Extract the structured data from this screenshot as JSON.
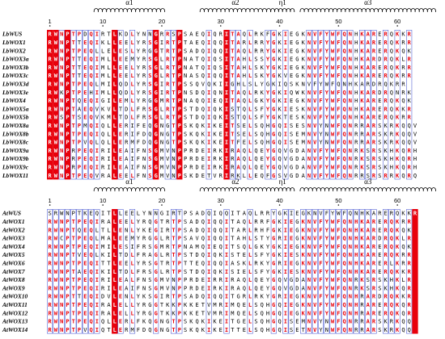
{
  "colors": {
    "identical": "#e8000b",
    "similar": "#e8000b",
    "box": "#3344cc",
    "text": "#000000"
  },
  "ruler": [
    "1",
    "10",
    "20",
    "30",
    "40",
    "50",
    "60"
  ],
  "panels": [
    {
      "secondary_structure": [
        {
          "label": "α1",
          "start": 9,
          "end": 20
        },
        {
          "label": "α2",
          "start": 27,
          "end": 38
        },
        {
          "label": "η1",
          "start": 39,
          "end": 42
        },
        {
          "label": "α3",
          "start": 44,
          "end": 66
        }
      ],
      "sequences": [
        {
          "name": "LbWUS",
          "seq": "RWNPTPDQIRTLKDLYNNGRRSPSAEQIQRITAQLRKFGKIEGKNVFYWFQNHKARERQKKR"
        },
        {
          "name": "LbWOX1",
          "seq": "RWNPTTEQIKLLEELYRSGIRTPTAEQIQQITARLRRYGKIEGKNVFYWFQNHKARERQKRR"
        },
        {
          "name": "LbWOX2",
          "seq": "RWNPTPEQLLELESLYRGGTRTPSADQIQQITAQLRRYGKIEGKNVFYWFQNHKARERQKQK"
        },
        {
          "name": "LbWOX3a",
          "seq": "RWNPTTEQIMLLEEMYRSGLRTPNATQIQSITAHLSSYGKIEGKNVFYWFQNHKARDRQKLR"
        },
        {
          "name": "LbWOX3b",
          "seq": "RWNPTTEQIMLLEELYRSGLRTPNATQIQSITAHLSKYGKIEGKNVFYWFQNHKARERQKRR"
        },
        {
          "name": "LbWOX3c",
          "seq": "RWNPTTEQIMLLEELYRSGLRTPNASQIQQITAHLSKYGKVEGKNVFYWFQNHKARERQKRR"
        },
        {
          "name": "LbWOX3d",
          "seq": "RWNPTPEQLMILQDLYRSGIRTPSSQVQKIIGHLSLYGKIQSKNVFYWFQNHKARDRQKRR"
        },
        {
          "name": "LbWOX3e",
          "seq": "RWKPTPEHIMLLQDLYRSGIRTPNSDQIQNITAQLRKYGKIQWKNVFYWFQNHKARDRQNRK"
        },
        {
          "name": "LbWOX4",
          "seq": "RWNPTQEQIGILEMLYRGGMRTPNAQQIEQITAQLGKYGKIEGKNVFYWFQNHKARERQKQK"
        },
        {
          "name": "LbWOX5a",
          "seq": "RWNPTAEQVKVLTDLFRSGLRTPSTDQIQKISTQLSFYGKIESKNVFYWFQNHKARERQKKR"
        },
        {
          "name": "LbWOX5b",
          "seq": "RWSPTSEQVKMLTDLFRSGLRTPSTDQIQKISTQLSFYGKTESKNVFYWFQNHKARERQKRR"
        },
        {
          "name": "LbWOX8a",
          "seq": "RWNPTPMQIQLLERIFEQGNGTPSKQKIKEITSELSQHGQISESNVYNWFQNRRARSKRKQQV"
        },
        {
          "name": "LbWOX8b",
          "seq": "RWNPTPEQIQLLERIFDQGNGTPSKQKIKEITSELSQHGQISEMNVYNWFQNRRARSKRKQQV"
        },
        {
          "name": "LbWOX8c",
          "seq": "RWNPTPVQLQLLERMFDQGNGTPSKQKIKEITFELSQHGQISEMNVYNWFQNRRARSKRKQQV"
        },
        {
          "name": "LbWOX9a",
          "seq": "RWNPRPEQIRILEAIFNSGMVNPPRDEIRKIRAQLQEYGQVGDANVFYWFQNRKSRSKHKQRH"
        },
        {
          "name": "LbWOX9b",
          "seq": "RWNPRPEQIRILEAIFNSGMVNPPRDEIRKIRAQLQEYGQVGDANVFYWFQNRKSRSKHKQRH"
        },
        {
          "name": "LbWOX9c",
          "seq": "RWNPRPEQIRILEAIFNSGMVNPPRDEIRKIRAQLQEYGQVGDANVFYWFQNRKSRSKHKQRH"
        },
        {
          "name": "LbWOX11",
          "seq": "RWNPTPEQVRALEELFNSGMVNPSKDETVRIRKLLEQFGSVGDANVFYWFQNRRSRSRRKQRQ"
        }
      ]
    },
    {
      "secondary_structure": [
        {
          "label": "α1",
          "start": 9,
          "end": 20
        },
        {
          "label": "α2",
          "start": 27,
          "end": 38
        },
        {
          "label": "η1",
          "start": 39,
          "end": 42
        },
        {
          "label": "α3",
          "start": 44,
          "end": 66
        }
      ],
      "sequences": [
        {
          "name": "AtWUS",
          "seq": "SRWNPTKEQITLLEELYNNGIRTPSADQIQQITAQLRRYGKIEGKNVFYWFQNHKARERQKKR"
        },
        {
          "name": "AtWOX1",
          "seq": "RWNPTPEQIRALEELYRQGTRTPSADQIQQITAQLRRFGKIEGKNVFYWFQNHKARERQKRR"
        },
        {
          "name": "AtWOX2",
          "seq": "RWNPTQEQLTLLENLYKEGIRTPSADQIQQITARLRHFGKIEGKNVFYWFQNHKARERQKQK"
        },
        {
          "name": "AtWOX3",
          "seq": "RWCPTPEQLMALEEMYRGGLRTPSAVQIQQITAHLSTYGRIEGKNVFYWFQNHKARDRQKLR"
        },
        {
          "name": "AtWOX4",
          "seq": "RWNPTPEQIMILESIFRSGMRTPNAMQIEQITSQLGKYGKIEGKNVFYWFQNHKARERQKQK"
        },
        {
          "name": "AtWOX5",
          "seq": "RWNPTVEQLKILTDLFRAGLRTPSTDQIQKISTELSFYGKIESKNVFYWFQNHKARERQKRR"
        },
        {
          "name": "AtWOX6",
          "seq": "RWNPTPEQITTLEELYRSGTRTPTTEQIQQIASKLRKYGRIEGKNVFYWFQNHKARERLKRR"
        },
        {
          "name": "AtWOX7",
          "seq": "RWNPTAEQIKILTDLFRSGLRTPSTDQIQKISIELSFYGKIESKNVFYWFQNHKARERQKKR"
        },
        {
          "name": "AtWOX8",
          "seq": "RWNPTPEQIRILEALFNSGMVNPPRDEIRRIRAQLQEYGQVGDANVFYWFQNRKSRSKHKLR"
        },
        {
          "name": "AtWOX9",
          "seq": "RWNPTPEQIRILEAIFNSGMVNPPRDEIRKIRAQLQEYGQVGDANVFYWFQNRKSRSKHKQR"
        },
        {
          "name": "AtWOX10",
          "seq": "RWNPTTEQIDVLENLYKSGIRTPSADQIQQITGRLRKYGRIEGKNVFYWFQNHRARDRQKKR"
        },
        {
          "name": "AtWOX11",
          "seq": "RWNPTPEQIRALELLYRGGTKKPKKETVMRIMQELSQHGQIEGKNVFYWFQNHRARERQKQR"
        },
        {
          "name": "AtWOX12",
          "seq": "RWNPTPEQIRALELLYRGGTKKPKKETVMRIMQELSQHGQIEGKNVFYWFQNHRARERQKQR"
        },
        {
          "name": "AtWOX13",
          "seq": "RWNPTPEQIQLLERLFKQGNGTPSKQKIKEITGELSQHGQISEMNVYNWFQNRRARSKRKQQ"
        },
        {
          "name": "AtWOX14",
          "seq": "RWNPTPVQIQTLERMFDQGNGTPSKQKIKEITTELSQHGQISETNVYNWFQNRRARSKRKQQ"
        }
      ]
    }
  ]
}
